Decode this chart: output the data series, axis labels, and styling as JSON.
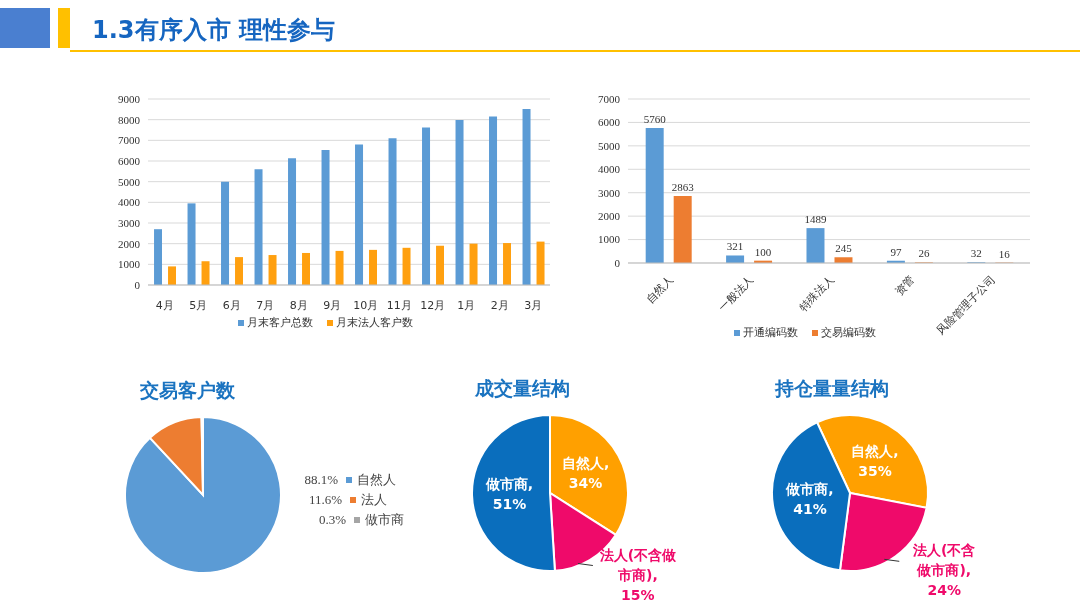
{
  "chart_data": [
    {
      "type": "other",
      "title": "1.3有序入市 理性参与"
    },
    {
      "type": "bar",
      "categories": [
        "4月",
        "5月",
        "6月",
        "7月",
        "8月",
        "9月",
        "10月",
        "11月",
        "12月",
        "1月",
        "2月",
        "3月"
      ],
      "series": [
        {
          "name": "月末客户总数",
          "color": "#5b9bd5",
          "values": [
            2700,
            3950,
            5000,
            5600,
            6130,
            6530,
            6800,
            7100,
            7620,
            7980,
            8150,
            8520
          ]
        },
        {
          "name": "月末法人客户数",
          "color": "#ffa010",
          "values": [
            900,
            1150,
            1350,
            1450,
            1550,
            1650,
            1700,
            1800,
            1900,
            2000,
            2030,
            2100
          ]
        }
      ],
      "ylim": [
        0,
        9000
      ],
      "yticks": [
        0,
        1000,
        2000,
        3000,
        4000,
        5000,
        6000,
        7000,
        8000,
        9000
      ],
      "grid": "y",
      "legend": "bottom"
    },
    {
      "type": "bar",
      "categories": [
        "自然人",
        "一般法人",
        "特殊法人",
        "资管",
        "风险管理子公司"
      ],
      "series": [
        {
          "name": "开通编码数",
          "color": "#5b9bd5",
          "values": [
            5760,
            321,
            1489,
            97,
            32
          ]
        },
        {
          "name": "交易编码数",
          "color": "#ed7d31",
          "values": [
            2863,
            100,
            245,
            26,
            16
          ]
        }
      ],
      "ylim": [
        0,
        7000
      ],
      "yticks": [
        0,
        1000,
        2000,
        3000,
        4000,
        5000,
        6000,
        7000
      ],
      "grid": "y",
      "legend": "bottom",
      "data_labels": true
    },
    {
      "type": "pie",
      "title": "交易客户数",
      "categories": [
        "自然人",
        "法人",
        "做市商"
      ],
      "values": [
        88.1,
        11.6,
        0.3
      ],
      "colors": [
        "#5b9bd5",
        "#ed7d31",
        "#a5a5a5"
      ],
      "value_labels": [
        "88.1%",
        "11.6%",
        "0.3%"
      ],
      "legend": "right"
    },
    {
      "type": "pie",
      "title": "成交量结构",
      "categories": [
        "自然人",
        "法人(不含做市商)",
        "做市商"
      ],
      "values": [
        34,
        15,
        51
      ],
      "colors": [
        "#ffa000",
        "#ef0a6a",
        "#0a6ebd"
      ],
      "value_labels": [
        ", 34%",
        ", 15%",
        ", 51%"
      ]
    },
    {
      "type": "pie",
      "title": "持仓量量结构",
      "categories": [
        "自然人",
        "法人(不含做市商)",
        "做市商"
      ],
      "values": [
        35,
        24,
        41
      ],
      "colors": [
        "#ffa000",
        "#ef0a6a",
        "#0a6ebd"
      ],
      "value_labels": [
        ", 35%",
        ", 24%",
        ", 41%"
      ]
    }
  ]
}
